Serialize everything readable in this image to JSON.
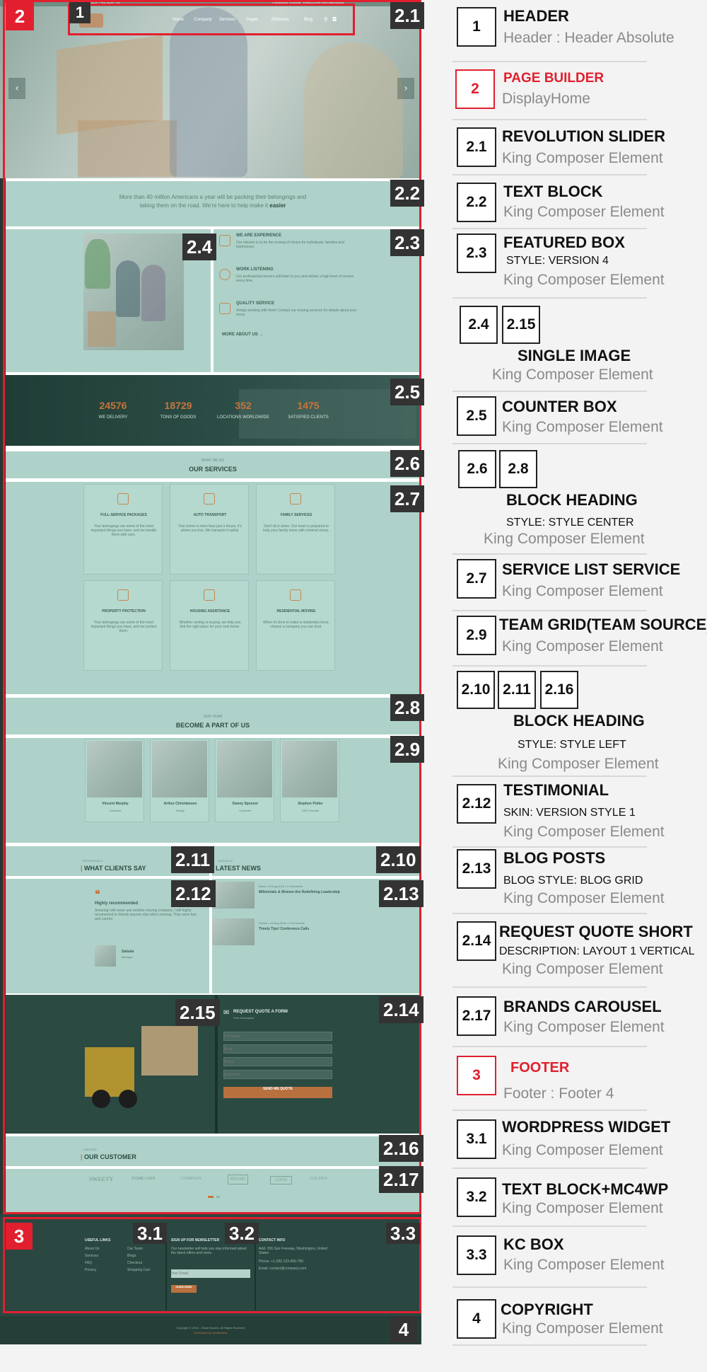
{
  "page": {
    "header": {
      "topbar_left": "1 (00) 123 - 45 650 78",
      "topbar_right_1": "Request Quote",
      "topbar_right_2": "Welcome Admin",
      "topbar_right_3": "Logout",
      "nav": [
        "Home",
        "Company",
        "Services",
        "Pages",
        "Elements",
        "Blog"
      ]
    },
    "text_block": {
      "line1": "More than 40 million Americans a year will be packing their belongings and",
      "line2": "taking them on the road. We're here to help make it",
      "emph": "easier"
    },
    "featured_box": [
      {
        "title": "WE ARE EXPERIENCE",
        "text": "Our mission is to be the moving of choice for individuals, families and businesses."
      },
      {
        "title": "WORK LISTENING",
        "text": "Our professional movers will listen to you and deliver a high level of service every time."
      },
      {
        "title": "QUALITY SERVICE",
        "text": "Simply working with them! Contact our moving services for details about your move."
      }
    ],
    "more_about_us": "MORE ABOUT US →",
    "counters": [
      {
        "value": "24576",
        "label": "WE DELIVERY"
      },
      {
        "value": "18729",
        "label": "TONS OF GOODS"
      },
      {
        "value": "352",
        "label": "LOCATIONS WORLDWIDE"
      },
      {
        "value": "1475",
        "label": "SATISFIED CLIENTS"
      }
    ],
    "services_heading": {
      "sub": "WHAT WE DO",
      "title": "OUR SERVICES"
    },
    "services": [
      {
        "title": "FULL-SERVICE PACKAGES",
        "text": "Your belongings are some of the most important things you have, and we handle them with care."
      },
      {
        "title": "AUTO TRANSPORT",
        "text": "Your home is more than just a house, it's where you live. We transport it safely."
      },
      {
        "title": "FAMILY SERVICES",
        "text": "Don't do it alone. Our team is prepared to help your family move with minimal stress."
      },
      {
        "title": "PROPERTY PROTECTION",
        "text": "Your belongings are some of the most important things you have, and we protect them."
      },
      {
        "title": "HOUSING ASSISTANCE",
        "text": "Whether renting or buying, we help you find the right place for your next home."
      },
      {
        "title": "RESIDENTIAL MOVING",
        "text": "When it's time to make a residential move, choose a company you can trust."
      }
    ],
    "team_heading": {
      "sub": "OUR TEAM",
      "title": "BECOME A PART OF US"
    },
    "team": [
      {
        "name": "Vincent Murphy",
        "role": "Customer"
      },
      {
        "name": "Arthur Christiansen",
        "role": "Design"
      },
      {
        "name": "Danny Spencer",
        "role": "Customer"
      },
      {
        "name": "Stephen Potter",
        "role": "CEO Founder"
      }
    ],
    "clients_heading": {
      "sub": "TESTIMONIALS",
      "title": "WHAT CLIENTS SAY"
    },
    "news_heading": {
      "sub": "OUR BLOG",
      "title": "LATEST NEWS"
    },
    "testimonial": {
      "quote_mark": "❝",
      "title": "Highly recommended",
      "text": "Amazing! will never use another moving company. I will highly recommend to friends anyone else who's moving. They were fast and careful.",
      "name": "Salsala",
      "role": "Manager"
    },
    "blog": [
      {
        "meta": "News • 19 Aug 2016 • 3 Comments",
        "title": "Millennials & Women Are Redefining Leadership"
      },
      {
        "meta": "Events • 19 Aug 2016 • 2 Comments",
        "title": "Timely Tips! Conference Calls"
      }
    ],
    "quote_form": {
      "title": "REQUEST QUOTE A FORM",
      "sub": "Free Description",
      "fields": [
        "Full Name",
        "Email",
        "Phone",
        "Departure"
      ],
      "button": "SEND ME QUOTE"
    },
    "customer_heading": {
      "sub": "PARTNER",
      "title": "OUR CUSTOMER"
    },
    "brands": [
      "SWEETY",
      "STORE LOGO",
      "COMPANY",
      "BRAND",
      "LOGO",
      "GOLDEN"
    ],
    "footer": {
      "col1_title": "USEFUL LINKS",
      "col1_links": [
        "About Us",
        "Services",
        "FAQ",
        "Privacy"
      ],
      "col1b_links": [
        "Our Team",
        "Blogs",
        "Checkout",
        "Shopping Cart"
      ],
      "col2_title": "SIGN UP FOR NEWSLETTER",
      "col2_text": "Our newsletter will help you stay informed about the latest offers and news.",
      "col2_placeholder": "Your Email",
      "col2_button": "SUBSCRIBE",
      "col3_title": "CONTACT INFO",
      "col3_lines": [
        "Add: 256 Sun Freeway, Washington, United States",
        "Phone: +1 (00) 123-456-789",
        "Email: contact@company.com"
      ],
      "copyright": "Copyright © 2016 - Zirkan Movers. All Rights Reserved",
      "powered": "Developed by Jenastheme"
    }
  },
  "legend": [
    {
      "num": "1",
      "title": "HEADER",
      "style": "",
      "sub": "Header : Header Absolute"
    },
    {
      "num": "2",
      "title": "PAGE BUILDER",
      "style": "",
      "sub": "DisplayHome",
      "red": true
    },
    {
      "num": "2.1",
      "title": "REVOLUTION SLIDER",
      "style": "",
      "sub": "King Composer Element"
    },
    {
      "num": "2.2",
      "title": "TEXT BLOCK",
      "style": "",
      "sub": "King Composer Element"
    },
    {
      "num": "2.3",
      "title": "FEATURED BOX",
      "style": "STYLE: VERSION 4",
      "sub": "King Composer Element"
    },
    {
      "nums": [
        "2.4",
        "2.15"
      ],
      "title": "SINGLE IMAGE",
      "style": "",
      "sub": "King Composer Element"
    },
    {
      "num": "2.5",
      "title": "COUNTER BOX",
      "style": "",
      "sub": "King Composer Element"
    },
    {
      "nums": [
        "2.6",
        "2.8"
      ],
      "title": "BLOCK HEADING",
      "style": "STYLE: STYLE CENTER",
      "sub": "King Composer Element"
    },
    {
      "num": "2.7",
      "title": "SERVICE LIST SERVICE",
      "style": "",
      "sub": "King Composer Element"
    },
    {
      "num": "2.9",
      "title": "TEAM GRID(TEAM SOURCE)",
      "style": "",
      "sub": "King Composer Element"
    },
    {
      "nums": [
        "2.10",
        "2.11",
        "2.16"
      ],
      "title": "BLOCK HEADING",
      "style": "STYLE: STYLE  LEFT",
      "sub": "King Composer Element"
    },
    {
      "num": "2.12",
      "title": "TESTIMONIAL",
      "style": "SKIN: VERSION STYLE 1",
      "sub": "King Composer Element"
    },
    {
      "num": "2.13",
      "title": "BLOG POSTS",
      "style": "BLOG STYLE: BLOG GRID",
      "sub": "King Composer Element"
    },
    {
      "num": "2.14",
      "title": "REQUEST QUOTE SHORT",
      "style": "DESCRIPTION: LAYOUT 1 VERTICAL",
      "sub": "King Composer Element"
    },
    {
      "num": "2.17",
      "title": "BRANDS CAROUSEL",
      "style": "",
      "sub": "King Composer Element"
    },
    {
      "num": "3",
      "title": "FOOTER",
      "style": "",
      "sub": "Footer : Footer 4",
      "red": true
    },
    {
      "num": "3.1",
      "title": "WORDPRESS WIDGET",
      "style": "",
      "sub": "King Composer Element"
    },
    {
      "num": "3.2",
      "title": "TEXT BLOCK+MC4WP",
      "style": "",
      "sub": "King Composer Element"
    },
    {
      "num": "3.3",
      "title": "KC BOX",
      "style": "",
      "sub": "King Composer Element"
    },
    {
      "num": "4",
      "title": "COPYRIGHT",
      "style": "",
      "sub": "King Composer Element"
    }
  ],
  "badges": {
    "b1": "1",
    "b2": "2",
    "b21": "2.1",
    "b22": "2.2",
    "b23": "2.3",
    "b24": "2.4",
    "b25": "2.5",
    "b26": "2.6",
    "b27": "2.7",
    "b28": "2.8",
    "b29": "2.9",
    "b210": "2.10",
    "b211": "2.11",
    "b212": "2.12",
    "b213": "2.13",
    "b214": "2.14",
    "b215": "2.15",
    "b216": "2.16",
    "b217": "2.17",
    "b3": "3",
    "b31": "3.1",
    "b32": "3.2",
    "b33": "3.3",
    "b4": "4"
  },
  "colors": {
    "accent_red": "#e21f2e",
    "mint": "#aed2c9",
    "dark_green": "#2a4a42",
    "orange": "#c9743b"
  }
}
